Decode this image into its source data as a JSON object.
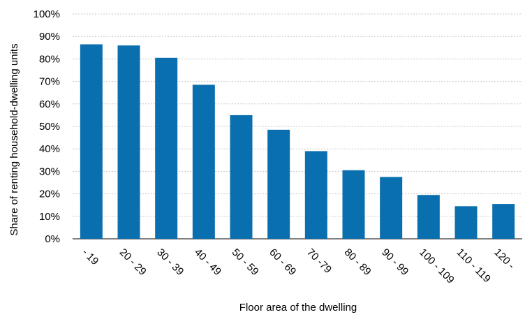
{
  "chart_data": {
    "type": "bar",
    "xlabel": "Floor area of the dwelling",
    "ylabel": "Share of renting household-dwelling units",
    "categories": [
      "- 19",
      "20 - 29",
      "30 - 39",
      "40 - 49",
      "50 - 59",
      "60 - 69",
      "70 -79",
      "80 - 89",
      "90 - 99",
      "100 - 109",
      "110 - 119",
      "120 -"
    ],
    "values": [
      86.5,
      86.0,
      80.5,
      68.5,
      55.0,
      48.5,
      39.0,
      30.5,
      27.5,
      19.5,
      14.5,
      15.5
    ],
    "ylim": [
      0,
      100
    ],
    "yticks": [
      "0%",
      "10%",
      "20%",
      "30%",
      "40%",
      "50%",
      "60%",
      "70%",
      "80%",
      "90%",
      "100%"
    ],
    "grid": true,
    "legend": "none",
    "bar_color": "#0a6fae",
    "grid_color": "#c8c8c8"
  }
}
